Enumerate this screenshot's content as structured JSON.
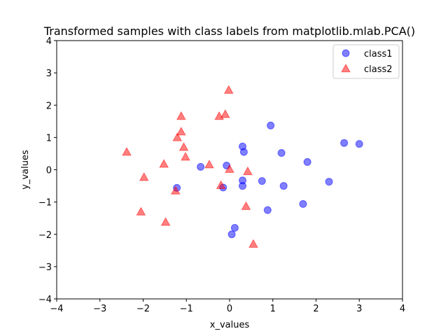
{
  "chart_data": {
    "type": "scatter",
    "title": "Transformed samples with class labels from matplotlib.mlab.PCA()",
    "xlabel": "x_values",
    "ylabel": "y_values",
    "xlim": [
      -4,
      4
    ],
    "ylim": [
      -4,
      4
    ],
    "xticks": [
      -4,
      -3,
      -2,
      -1,
      0,
      1,
      2,
      3,
      4
    ],
    "yticks": [
      -4,
      -3,
      -2,
      -1,
      0,
      1,
      2,
      3,
      4
    ],
    "grid": false,
    "legend_position": "top-right",
    "series": [
      {
        "name": "class1",
        "marker": "circle",
        "color": "#0000ff",
        "points": [
          [
            0.95,
            1.37
          ],
          [
            0.3,
            0.72
          ],
          [
            0.33,
            0.55
          ],
          [
            1.2,
            0.52
          ],
          [
            2.65,
            0.83
          ],
          [
            3.0,
            0.8
          ],
          [
            1.8,
            0.24
          ],
          [
            -0.67,
            0.09
          ],
          [
            -0.07,
            0.13
          ],
          [
            -0.15,
            -0.55
          ],
          [
            -1.22,
            -0.56
          ],
          [
            0.3,
            -0.33
          ],
          [
            0.3,
            -0.5
          ],
          [
            0.75,
            -0.35
          ],
          [
            1.25,
            -0.5
          ],
          [
            2.3,
            -0.37
          ],
          [
            1.7,
            -1.06
          ],
          [
            0.88,
            -1.25
          ],
          [
            0.12,
            -1.8
          ],
          [
            0.05,
            -2.0
          ]
        ]
      },
      {
        "name": "class2",
        "marker": "triangle",
        "color": "#ff0000",
        "points": [
          [
            -0.02,
            2.47
          ],
          [
            -0.1,
            1.72
          ],
          [
            -0.24,
            1.66
          ],
          [
            -1.12,
            1.66
          ],
          [
            -1.12,
            1.18
          ],
          [
            -1.21,
            1.0
          ],
          [
            -1.06,
            0.7
          ],
          [
            -1.02,
            0.4
          ],
          [
            -2.38,
            0.55
          ],
          [
            -1.52,
            0.18
          ],
          [
            -0.47,
            0.16
          ],
          [
            0.0,
            0.02
          ],
          [
            0.42,
            -0.05
          ],
          [
            -1.98,
            -0.23
          ],
          [
            -0.2,
            -0.48
          ],
          [
            -1.25,
            -0.65
          ],
          [
            0.38,
            -1.13
          ],
          [
            -2.05,
            -1.3
          ],
          [
            -1.48,
            -1.62
          ],
          [
            0.55,
            -2.3
          ]
        ]
      }
    ]
  }
}
